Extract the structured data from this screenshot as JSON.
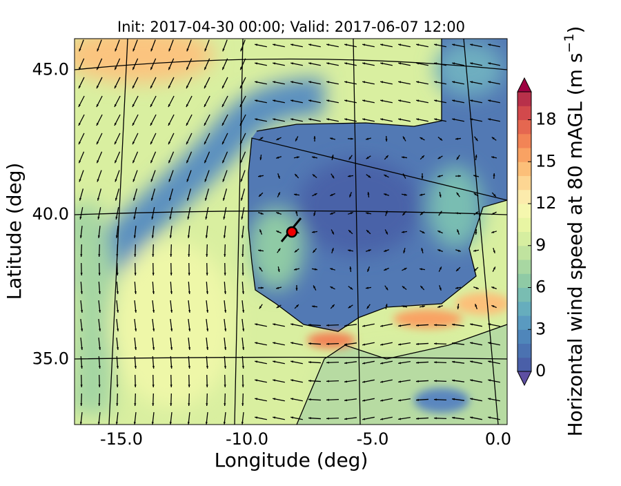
{
  "map": {
    "title": "Init: 2017-04-30 00:00; Valid: 2017-06-07 12:00",
    "xlabel": "Longitude (deg)",
    "ylabel": "Latitude (deg)",
    "xticks": [
      {
        "value": -15,
        "label": "-15.0"
      },
      {
        "value": -10,
        "label": "-10.0"
      },
      {
        "value": -5,
        "label": "-5.0"
      },
      {
        "value": 0,
        "label": "0.0"
      }
    ],
    "yticks": [
      {
        "value": 45,
        "label": "45.0"
      },
      {
        "value": 40,
        "label": "40.0"
      },
      {
        "value": 35,
        "label": "35.0"
      }
    ]
  },
  "colorbar": {
    "label": "Horizontal wind speed at 80 mAGL (m s",
    "label_exponent": "−1",
    "label_end": ")",
    "range": [
      0,
      20
    ],
    "ticks": [
      0,
      3,
      6,
      9,
      12,
      15,
      18
    ],
    "colors": [
      "#4a5fa8",
      "#4b72b1",
      "#4f86ba",
      "#5a9ac0",
      "#66adbd",
      "#79bdb2",
      "#8fcaa5",
      "#a8d7a2",
      "#c0e39f",
      "#d6eea0",
      "#e8f5a3",
      "#f5f7ae",
      "#fcebac",
      "#fdd693",
      "#fcbf79",
      "#f9a263",
      "#f28456",
      "#e56750",
      "#d2494c",
      "#b8304a"
    ],
    "under": "#5e4fa2",
    "over": "#9e0142"
  }
}
